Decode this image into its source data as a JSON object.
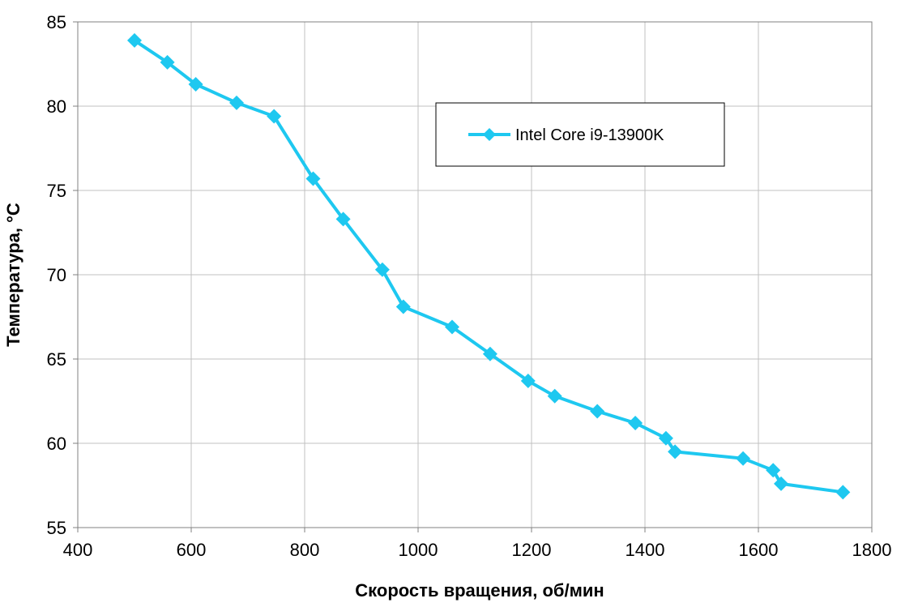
{
  "colors": {
    "series": "#1EC8F0",
    "grid": "#C0C0C0",
    "axis": "#808080",
    "background": "#FFFFFF"
  },
  "chart_data": {
    "type": "line",
    "title": "",
    "xlabel": "Скорость вращения, об/мин",
    "ylabel": "Температура, °C",
    "xlim": [
      400,
      1800
    ],
    "ylim": [
      55,
      85
    ],
    "xticks": [
      "400",
      "600",
      "800",
      "1000",
      "1200",
      "1400",
      "1600",
      "1800"
    ],
    "yticks": [
      "55",
      "60",
      "65",
      "70",
      "75",
      "80",
      "85"
    ],
    "grid": true,
    "legend_position": "top-right",
    "series": [
      {
        "name": "Intel Core i9-13900K",
        "marker": "diamond",
        "x": [
          500,
          558,
          608,
          680,
          746,
          815,
          868,
          937,
          974,
          1060,
          1127,
          1194,
          1241,
          1316,
          1383,
          1437,
          1453,
          1573,
          1626,
          1640,
          1749
        ],
        "y": [
          83.9,
          82.6,
          81.3,
          80.2,
          79.4,
          75.7,
          73.3,
          70.3,
          68.1,
          66.9,
          65.3,
          63.7,
          62.8,
          61.9,
          61.2,
          60.3,
          59.5,
          59.1,
          58.4,
          57.6,
          57.1
        ]
      }
    ]
  }
}
